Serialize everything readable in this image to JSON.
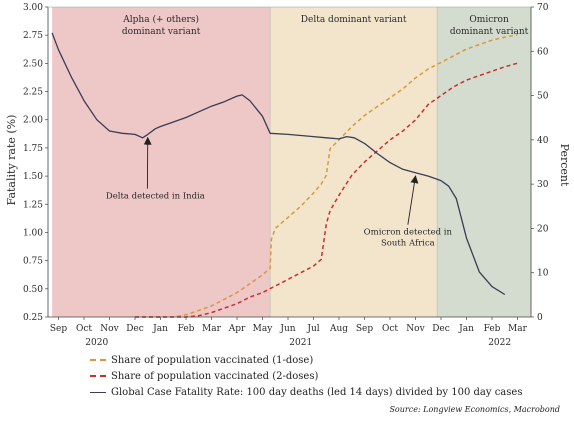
{
  "chart_data": {
    "type": "line",
    "ylabel_left": "Fatality rate (%)",
    "ylabel_right": "Percent",
    "ylim_left": [
      0.25,
      3.0
    ],
    "ylim_right": [
      0,
      70
    ],
    "left_ticks": [
      "0.25",
      "0.50",
      "0.75",
      "1.00",
      "1.25",
      "1.50",
      "1.75",
      "2.00",
      "2.25",
      "2.50",
      "2.75",
      "3.00"
    ],
    "right_ticks": [
      "0",
      "10",
      "20",
      "30",
      "40",
      "50",
      "60",
      "70"
    ],
    "month_labels": [
      "Sep",
      "Oct",
      "Nov",
      "Dec",
      "Jan",
      "Feb",
      "Mar",
      "Apr",
      "May",
      "Jun",
      "Jul",
      "Aug",
      "Sep",
      "Oct",
      "Nov",
      "Dec",
      "Jan",
      "Feb",
      "Mar"
    ],
    "year_labels": [
      {
        "label": "2020",
        "month_index": 1.5
      },
      {
        "label": "2021",
        "month_index": 9.5
      },
      {
        "label": "2022",
        "month_index": 17.3
      }
    ],
    "regions": [
      {
        "label_lines": [
          "Alpha (+ others)",
          "dominant variant"
        ],
        "start": -0.25,
        "end": 8.3,
        "color": "#eec7c7"
      },
      {
        "label_lines": [
          "Delta dominant variant"
        ],
        "start": 8.3,
        "end": 14.85,
        "color": "#f2e5cc"
      },
      {
        "label_lines": [
          "Omicron",
          "dominant variant"
        ],
        "start": 14.85,
        "end": 18.6,
        "color": "#d4dccf"
      }
    ],
    "annotations": [
      {
        "lines": [
          "Delta detected in India"
        ],
        "text_x": 3.8,
        "text_y": 1.3,
        "arrow_to_x": 3.5,
        "arrow_to_y": 1.84
      },
      {
        "lines": [
          "Omicron detected in",
          "South Africa"
        ],
        "text_x": 13.7,
        "text_y": 0.98,
        "arrow_to_x": 14.0,
        "arrow_to_y": 1.5
      }
    ],
    "series": [
      {
        "name": "Share of population vaccinated (1-dose)",
        "axis": "right",
        "color": "#d9993a",
        "style": "dashed",
        "x": [
          3.0,
          4.5,
          5.0,
          5.5,
          6.0,
          6.5,
          7.0,
          7.5,
          8.0,
          8.3,
          8.35,
          8.5,
          9.0,
          9.5,
          10.0,
          10.3,
          10.5,
          10.65,
          11.0,
          11.5,
          12.0,
          12.5,
          13.0,
          13.5,
          14.0,
          14.5,
          15.0,
          15.5,
          16.0,
          16.5,
          17.0,
          17.5,
          18.0
        ],
        "y": [
          0,
          0,
          0.5,
          1.5,
          2.5,
          4.0,
          5.5,
          7.5,
          9.5,
          11.0,
          17.5,
          20.0,
          22.5,
          25.0,
          28.0,
          30.0,
          32.0,
          38.0,
          40.0,
          43.0,
          45.5,
          47.5,
          49.5,
          51.5,
          54.0,
          56.0,
          57.5,
          59.0,
          60.5,
          61.5,
          62.5,
          63.2,
          63.7
        ]
      },
      {
        "name": "Share of population vaccinated (2-doses)",
        "axis": "right",
        "color": "#cc2e2e",
        "style": "dashed",
        "x": [
          3.0,
          5.0,
          5.5,
          6.0,
          6.5,
          7.0,
          7.5,
          8.0,
          8.5,
          9.0,
          9.5,
          10.0,
          10.3,
          10.5,
          10.65,
          11.0,
          11.5,
          12.0,
          12.5,
          13.0,
          13.5,
          14.0,
          14.5,
          15.0,
          15.5,
          16.0,
          16.5,
          17.0,
          17.5,
          18.0
        ],
        "y": [
          0,
          0,
          0.3,
          1.0,
          2.0,
          3.0,
          4.5,
          5.5,
          7.0,
          8.5,
          10.0,
          11.5,
          13.0,
          21.0,
          24.0,
          27.5,
          32.0,
          35.0,
          37.5,
          40.0,
          42.0,
          44.5,
          48.0,
          50.0,
          52.0,
          53.5,
          54.5,
          55.5,
          56.5,
          57.3
        ]
      },
      {
        "name": "Global Case Fatality Rate: 100 day deaths (led 14 days) divided by 100 day cases",
        "axis": "left",
        "color": "#3c3c55",
        "style": "solid",
        "x": [
          -0.25,
          0.0,
          0.5,
          1.0,
          1.5,
          2.0,
          2.5,
          3.0,
          3.3,
          3.5,
          3.8,
          4.0,
          4.5,
          5.0,
          5.5,
          6.0,
          6.5,
          7.0,
          7.2,
          7.5,
          8.0,
          8.3,
          9.0,
          9.5,
          10.0,
          10.5,
          11.0,
          11.3,
          11.6,
          12.0,
          12.5,
          13.0,
          13.5,
          14.0,
          14.5,
          15.0,
          15.3,
          15.6,
          16.0,
          16.5,
          17.0,
          17.5
        ],
        "y": [
          2.77,
          2.62,
          2.38,
          2.17,
          2.0,
          1.9,
          1.88,
          1.87,
          1.84,
          1.87,
          1.92,
          1.94,
          1.98,
          2.02,
          2.07,
          2.12,
          2.16,
          2.21,
          2.22,
          2.17,
          2.03,
          1.88,
          1.87,
          1.86,
          1.85,
          1.84,
          1.83,
          1.85,
          1.84,
          1.79,
          1.7,
          1.62,
          1.56,
          1.53,
          1.5,
          1.46,
          1.41,
          1.3,
          0.95,
          0.65,
          0.52,
          0.45
        ]
      }
    ]
  },
  "source": "Source: Longview Economics, Macrobond"
}
